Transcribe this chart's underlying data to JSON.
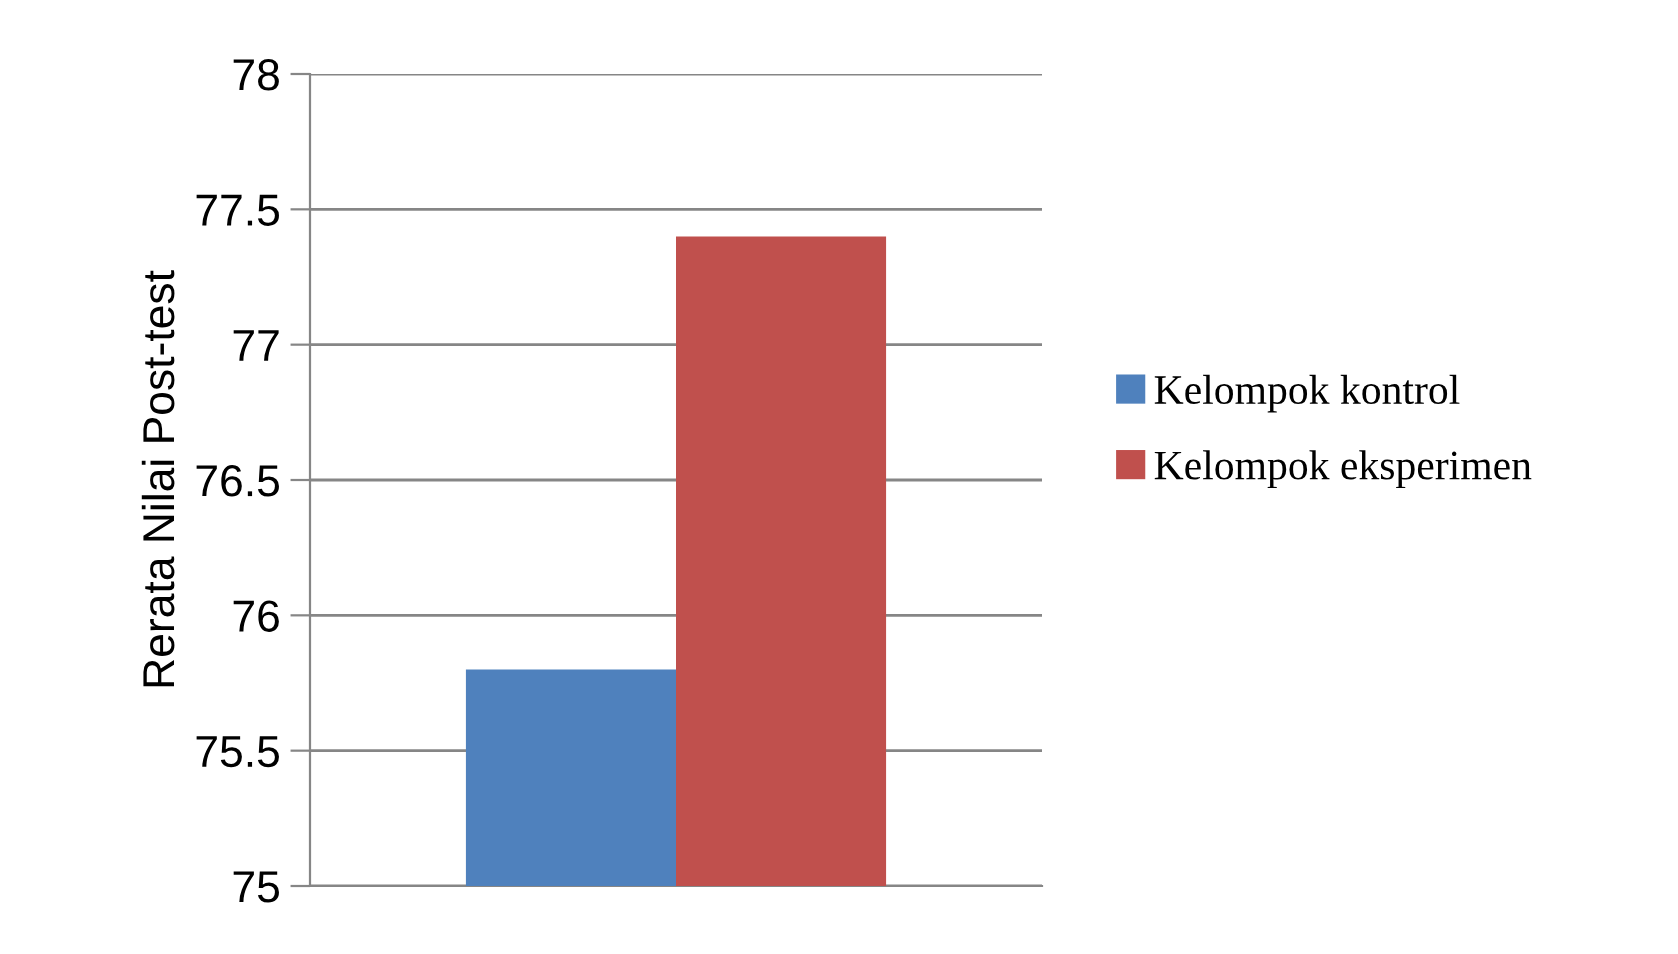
{
  "chart_data": {
    "type": "bar",
    "ylabel": "Rerata Nilai Post-test",
    "categories": [
      null
    ],
    "series": [
      {
        "name": "Kelompok kontrol",
        "color": "#4f81bd",
        "values": [
          75.8
        ]
      },
      {
        "name": "Kelompok eksperimen",
        "color": "#c0504d",
        "values": [
          77.4
        ]
      }
    ],
    "ylim": [
      75,
      78
    ],
    "yticks": [
      75,
      75.5,
      76,
      76.5,
      77,
      77.5,
      78
    ],
    "grid": "y",
    "legend": "right"
  }
}
